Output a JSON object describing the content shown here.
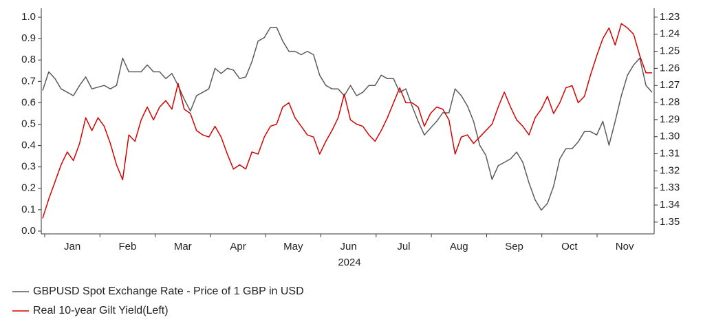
{
  "chart_data": {
    "type": "line",
    "xlabel": "2024",
    "months": [
      "Jan",
      "Feb",
      "Mar",
      "Apr",
      "May",
      "Jun",
      "Jul",
      "Aug",
      "Sep",
      "Oct",
      "Nov"
    ],
    "ylim": [
      -0.013,
      1.042
    ],
    "yticks": [
      {
        "value": 0,
        "label": "0.0"
      },
      0.1,
      0.2,
      0.3,
      0.4,
      0.5,
      0.6,
      0.7,
      0.8,
      0.9,
      {
        "value": 1,
        "label": "1.0"
      }
    ],
    "y2lim": [
      1.2248,
      1.3569
    ],
    "y2_inverted": true,
    "y2ticks": [
      1.23,
      1.24,
      1.25,
      1.26,
      1.27,
      1.28,
      1.29,
      {
        "value": 1.3,
        "label": "1.30"
      },
      1.31,
      1.32,
      1.33,
      1.34,
      1.35
    ],
    "series": [
      {
        "name": "GBPUSD Spot Exchange Rate - Price of 1 GBP in USD",
        "color": "#5a5a5a",
        "axis": "y2",
        "values": [
          1.273,
          1.262,
          1.266,
          1.272,
          1.274,
          1.276,
          1.27,
          1.265,
          1.272,
          1.271,
          1.27,
          1.272,
          1.27,
          1.254,
          1.262,
          1.262,
          1.262,
          1.258,
          1.262,
          1.262,
          1.266,
          1.263,
          1.27,
          1.278,
          1.285,
          1.276,
          1.274,
          1.272,
          1.26,
          1.263,
          1.26,
          1.261,
          1.266,
          1.265,
          1.256,
          1.244,
          1.242,
          1.236,
          1.236,
          1.244,
          1.25,
          1.25,
          1.252,
          1.25,
          1.252,
          1.264,
          1.27,
          1.272,
          1.272,
          1.276,
          1.27,
          1.276,
          1.274,
          1.27,
          1.27,
          1.264,
          1.266,
          1.266,
          1.274,
          1.272,
          1.282,
          1.291,
          1.299,
          1.295,
          1.291,
          1.286,
          1.286,
          1.272,
          1.276,
          1.282,
          1.291,
          1.305,
          1.311,
          1.325,
          1.317,
          1.315,
          1.313,
          1.309,
          1.315,
          1.327,
          1.337,
          1.343,
          1.339,
          1.329,
          1.313,
          1.307,
          1.307,
          1.303,
          1.297,
          1.297,
          1.299,
          1.291,
          1.305,
          1.291,
          1.276,
          1.264,
          1.258,
          1.254,
          1.27,
          1.274
        ]
      },
      {
        "name": "Real 10-year Gilt Yield(Left)",
        "color": "#d40000",
        "values": [
          0.06,
          0.15,
          0.23,
          0.31,
          0.37,
          0.33,
          0.41,
          0.53,
          0.47,
          0.53,
          0.49,
          0.41,
          0.31,
          0.24,
          0.45,
          0.42,
          0.52,
          0.58,
          0.52,
          0.58,
          0.61,
          0.57,
          0.69,
          0.57,
          0.55,
          0.47,
          0.45,
          0.44,
          0.49,
          0.44,
          0.36,
          0.29,
          0.31,
          0.29,
          0.37,
          0.36,
          0.44,
          0.49,
          0.5,
          0.58,
          0.6,
          0.53,
          0.49,
          0.45,
          0.44,
          0.36,
          0.42,
          0.47,
          0.53,
          0.64,
          0.52,
          0.5,
          0.49,
          0.45,
          0.42,
          0.47,
          0.53,
          0.6,
          0.67,
          0.6,
          0.6,
          0.58,
          0.49,
          0.55,
          0.58,
          0.57,
          0.52,
          0.36,
          0.44,
          0.45,
          0.41,
          0.44,
          0.47,
          0.5,
          0.58,
          0.65,
          0.58,
          0.52,
          0.49,
          0.45,
          0.53,
          0.57,
          0.63,
          0.55,
          0.6,
          0.67,
          0.68,
          0.6,
          0.63,
          0.73,
          0.82,
          0.9,
          0.95,
          0.87,
          0.97,
          0.95,
          0.92,
          0.82,
          0.74,
          0.74
        ]
      }
    ]
  }
}
